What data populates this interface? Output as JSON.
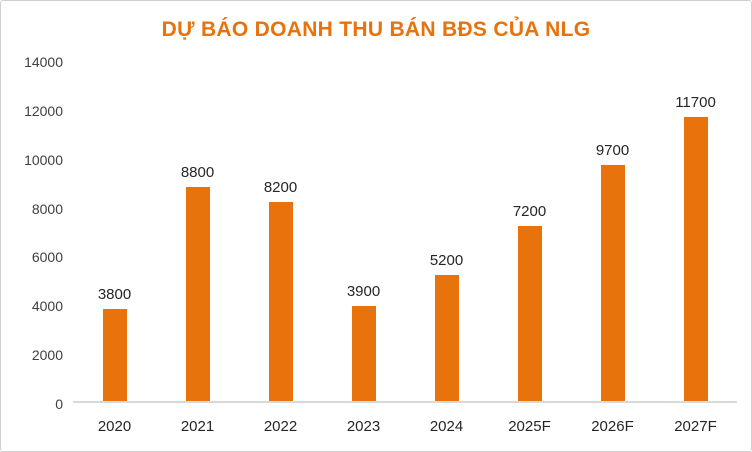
{
  "accent_color": "#E8720B",
  "chart_data": {
    "type": "bar",
    "title": "DỰ BÁO DOANH THU BÁN BĐS CỦA NLG",
    "categories": [
      "2020",
      "2021",
      "2022",
      "2023",
      "2024",
      "2025F",
      "2026F",
      "2027F"
    ],
    "values": [
      3800,
      8800,
      8200,
      3900,
      5200,
      7200,
      9700,
      11700
    ],
    "data_labels": [
      "3800",
      "8800",
      "8200",
      "3900",
      "5200",
      "7200",
      "9700",
      "11700"
    ],
    "xlabel": "",
    "ylabel": "",
    "ylim": [
      0,
      14000
    ],
    "y_ticks": [
      0,
      2000,
      4000,
      6000,
      8000,
      10000,
      12000,
      14000
    ],
    "y_tick_labels": [
      "0",
      "2000",
      "4000",
      "6000",
      "8000",
      "10000",
      "12000",
      "14000"
    ],
    "grid": false,
    "legend": "none",
    "bar_color": "#E8720B",
    "title_color": "#E8720B",
    "axis_line_color": "#d9d9d9"
  }
}
